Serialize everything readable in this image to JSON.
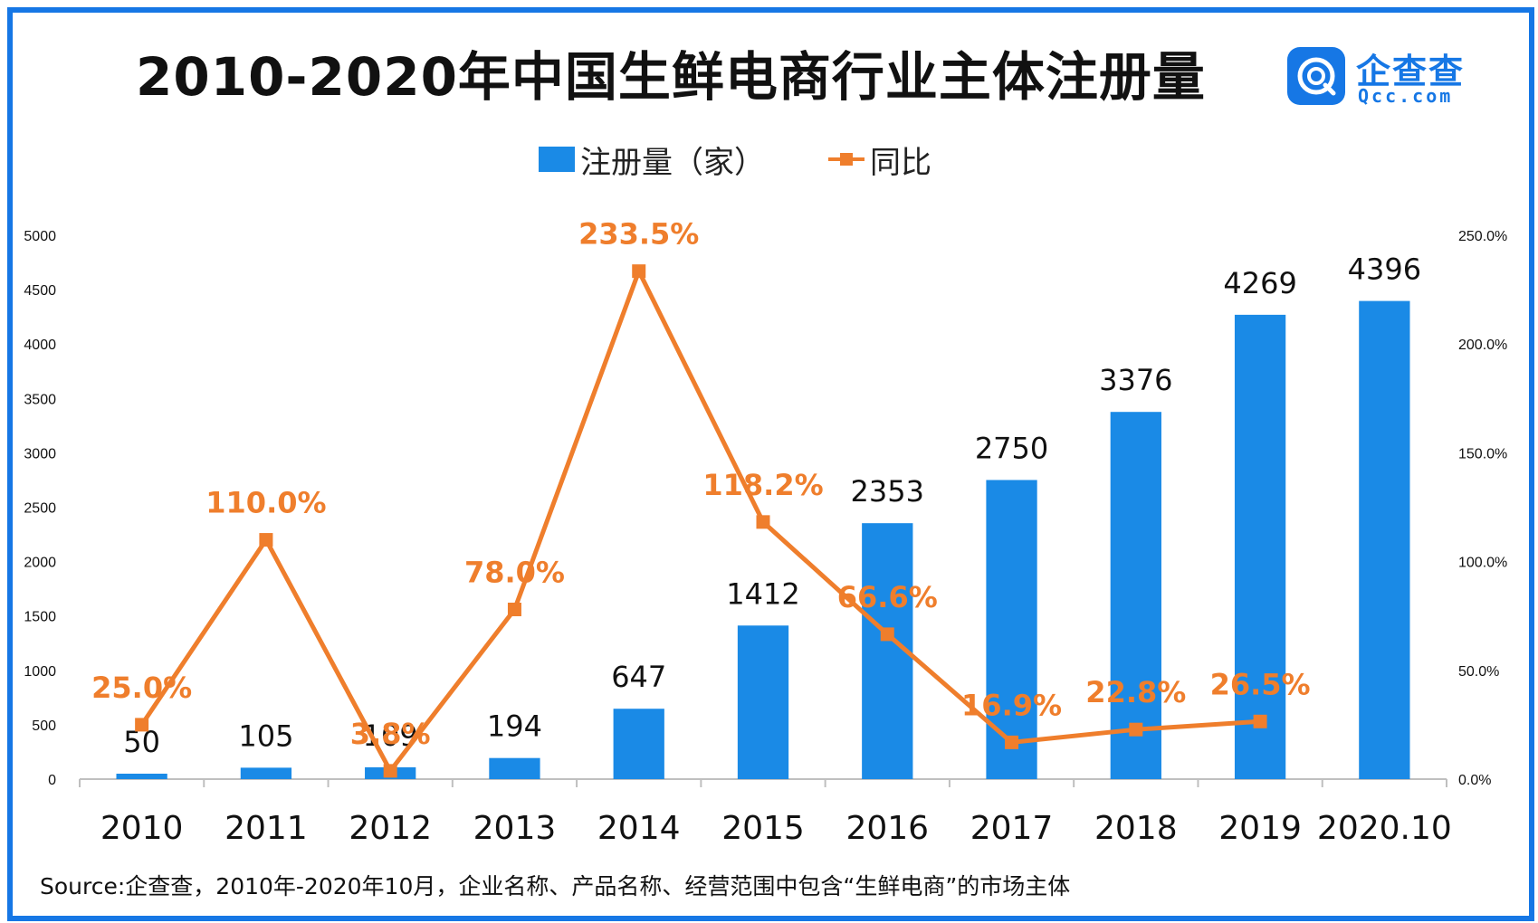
{
  "title": "2010-2020年中国生鲜电商行业主体注册量",
  "logo": {
    "name": "企查查",
    "domain": "Qcc.com",
    "icon": "qcc-logo-icon"
  },
  "source": "Source:企查查，2010年-2020年10月，企业名称、产品名称、经营范围中包含“生鲜电商”的市场主体",
  "colors": {
    "bar": "#1a8ae6",
    "line": "#ef7e2c",
    "frame": "#1677e5",
    "label_pct": "#ef7e2c"
  },
  "chart_data": {
    "type": "bar",
    "categories": [
      "2010",
      "2011",
      "2012",
      "2013",
      "2014",
      "2015",
      "2016",
      "2017",
      "2018",
      "2019",
      "2020.10"
    ],
    "series": [
      {
        "name": "注册量（家）",
        "type": "bar",
        "axis": "left",
        "values": [
          50,
          105,
          109,
          194,
          647,
          1412,
          2353,
          2750,
          3376,
          4269,
          4396
        ],
        "labels": [
          "50",
          "105",
          "109",
          "194",
          "647",
          "1412",
          "2353",
          "2750",
          "3376",
          "4269",
          "4396"
        ]
      },
      {
        "name": "同比",
        "type": "line",
        "axis": "right",
        "values": [
          25.0,
          110.0,
          3.8,
          78.0,
          233.5,
          118.2,
          66.6,
          16.9,
          22.8,
          26.5,
          null
        ],
        "labels": [
          "25.0%",
          "110.0%",
          "3.8%",
          "78.0%",
          "233.5%",
          "118.2%",
          "66.6%",
          "16.9%",
          "22.8%",
          "26.5%",
          ""
        ]
      }
    ],
    "y_left": {
      "ylim": [
        0,
        5000
      ],
      "ticks": [
        "0",
        "500",
        "1000",
        "1500",
        "2000",
        "2500",
        "3000",
        "3500",
        "4000",
        "4500",
        "5000"
      ]
    },
    "y_right": {
      "ylim": [
        0,
        250
      ],
      "ticks": [
        "0.0%",
        "50.0%",
        "100.0%",
        "150.0%",
        "200.0%",
        "250.0%"
      ]
    },
    "grid": false,
    "legend": "top-center"
  }
}
